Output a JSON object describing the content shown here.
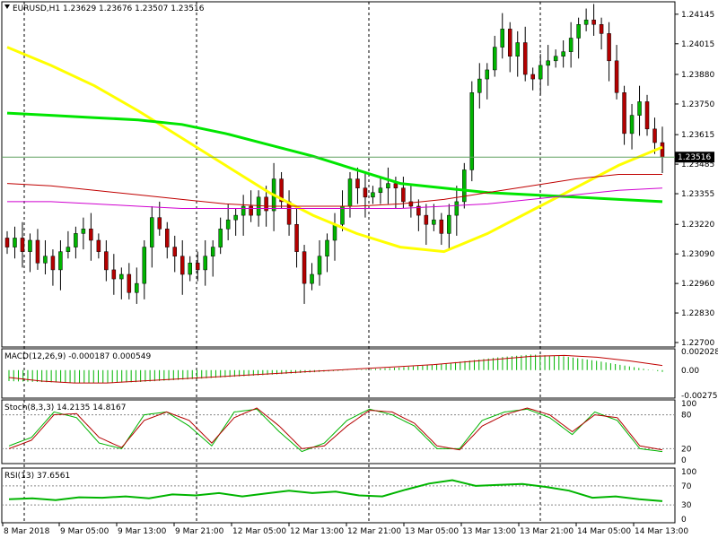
{
  "window": {
    "title": "EURUSD,H1"
  },
  "colors": {
    "bull": "#00b400",
    "bear": "#b40000",
    "ma_fast": "#ffff00",
    "ma_slow": "#00e600",
    "ma_red": "#c00000",
    "ma_magenta": "#d000d0",
    "current_price_line": "#60a060",
    "grid": "#000000"
  },
  "chart_data": [
    {
      "type": "candlestick",
      "title": "EURUSD,H1",
      "ohlc_readout": {
        "open": "1.23629",
        "high": "1.23676",
        "low": "1.23507",
        "close": "1.23516"
      },
      "ylim": [
        1.227,
        1.2418
      ],
      "y_ticks": [
        "1.24145",
        "1.24015",
        "1.23880",
        "1.23750",
        "1.23615",
        "1.23485",
        "1.23355",
        "1.23220",
        "1.23090",
        "1.22960",
        "1.22830",
        "1.22700"
      ],
      "current_price": "1.23516",
      "x_ticks": [
        "8 Mar 2018",
        "9 Mar 05:00",
        "9 Mar 13:00",
        "9 Mar 21:00",
        "12 Mar 05:00",
        "12 Mar 13:00",
        "12 Mar 21:00",
        "13 Mar 05:00",
        "13 Mar 13:00",
        "13 Mar 21:00",
        "14 Mar 05:00",
        "14 Mar 13:00"
      ],
      "candles_close": [
        1.2312,
        1.2316,
        1.231,
        1.2315,
        1.2305,
        1.2308,
        1.2302,
        1.231,
        1.2312,
        1.2318,
        1.232,
        1.2315,
        1.231,
        1.2302,
        1.2298,
        1.23,
        1.2292,
        1.2296,
        1.2312,
        1.2325,
        1.232,
        1.2312,
        1.2308,
        1.23,
        1.2305,
        1.2302,
        1.2308,
        1.2312,
        1.232,
        1.2324,
        1.2326,
        1.233,
        1.2326,
        1.2334,
        1.2328,
        1.2342,
        1.2332,
        1.2322,
        1.231,
        1.2296,
        1.23,
        1.2308,
        1.2315,
        1.2322,
        1.233,
        1.2342,
        1.2338,
        1.2334,
        1.2336,
        1.2338,
        1.234,
        1.2338,
        1.2332,
        1.233,
        1.2326,
        1.2322,
        1.2324,
        1.2318,
        1.2326,
        1.2332,
        1.2346,
        1.238,
        1.2386,
        1.239,
        1.24,
        1.2408,
        1.2396,
        1.2402,
        1.2388,
        1.2386,
        1.2392,
        1.2394,
        1.2396,
        1.2398,
        1.2404,
        1.241,
        1.2412,
        1.241,
        1.2406,
        1.2394,
        1.238,
        1.2362,
        1.237,
        1.2376,
        1.2364,
        1.2358,
        1.23516
      ],
      "series": [
        {
          "name": "",
          "kind": "sma_fast",
          "values": [
            1.24,
            1.2392,
            1.2383,
            1.2372,
            1.236,
            1.2348,
            1.2336,
            1.2326,
            1.2318,
            1.2312,
            1.231,
            1.2318,
            1.2328,
            1.2338,
            1.2348,
            1.2356
          ]
        },
        {
          "name": "",
          "kind": "sma_slow",
          "values": [
            1.2371,
            1.237,
            1.2369,
            1.2368,
            1.2366,
            1.2362,
            1.2357,
            1.2352,
            1.2346,
            1.234,
            1.2338,
            1.2336,
            1.2335,
            1.2334,
            1.2333,
            1.2332
          ]
        },
        {
          "name": "",
          "kind": "red_ma",
          "values": [
            1.234,
            1.2339,
            1.2337,
            1.2335,
            1.2333,
            1.2331,
            1.233,
            1.233,
            1.233,
            1.2331,
            1.2333,
            1.2336,
            1.2339,
            1.2342,
            1.2344,
            1.2344
          ]
        },
        {
          "name": "",
          "kind": "magenta_ma",
          "values": [
            1.2332,
            1.2332,
            1.2331,
            1.233,
            1.2329,
            1.2329,
            1.2329,
            1.2329,
            1.2329,
            1.2329,
            1.233,
            1.2331,
            1.2333,
            1.2335,
            1.2337,
            1.2338
          ]
        }
      ]
    },
    {
      "type": "bar",
      "title": "MACD(12,26,9) -0.000187 0.000549",
      "ylim": [
        -0.002758,
        0.002028
      ],
      "y_ticks": [
        "0.002028",
        "0.00",
        "-0.002758"
      ],
      "values": [
        -0.0012,
        -0.0013,
        -0.0014,
        -0.0014,
        -0.0013,
        -0.0011,
        -0.0009,
        -0.0007,
        -0.0005,
        -0.0003,
        -0.0001,
        0.0001,
        0.0003,
        0.0006,
        0.001,
        0.0014,
        0.0017,
        0.0015,
        0.001,
        0.0004,
        -0.0002
      ],
      "signal": [
        -0.0008,
        -0.0012,
        -0.0014,
        -0.0014,
        -0.0012,
        -0.001,
        -0.0008,
        -0.0006,
        -0.0004,
        -0.0002,
        0.0,
        0.0002,
        0.0004,
        0.0006,
        0.0009,
        0.0012,
        0.0015,
        0.0016,
        0.0014,
        0.001,
        0.0005
      ]
    },
    {
      "type": "line",
      "title": "Stoch(8,3,3) 14.2135 14.8167",
      "ylim": [
        0,
        100
      ],
      "y_ticks": [
        "100",
        "80",
        "20",
        "0"
      ],
      "series": [
        {
          "name": "",
          "kind": "main",
          "values": [
            25,
            40,
            85,
            75,
            30,
            20,
            80,
            85,
            60,
            25,
            85,
            90,
            50,
            15,
            30,
            70,
            90,
            80,
            60,
            20,
            20,
            70,
            85,
            90,
            75,
            45,
            85,
            70,
            20,
            15
          ]
        },
        {
          "name": "",
          "kind": "signal",
          "values": [
            20,
            35,
            80,
            82,
            40,
            22,
            70,
            85,
            70,
            30,
            75,
            92,
            60,
            20,
            25,
            60,
            88,
            85,
            65,
            25,
            18,
            60,
            80,
            92,
            80,
            50,
            80,
            75,
            25,
            18
          ]
        }
      ]
    },
    {
      "type": "line",
      "title": "RSI(13) 37.6561",
      "ylim": [
        0,
        100
      ],
      "y_ticks": [
        "100",
        "70",
        "30",
        "0"
      ],
      "values": [
        42,
        44,
        40,
        46,
        45,
        48,
        44,
        52,
        50,
        55,
        48,
        54,
        60,
        55,
        58,
        50,
        48,
        62,
        75,
        82,
        70,
        72,
        74,
        68,
        60,
        45,
        48,
        42,
        38
      ]
    }
  ]
}
